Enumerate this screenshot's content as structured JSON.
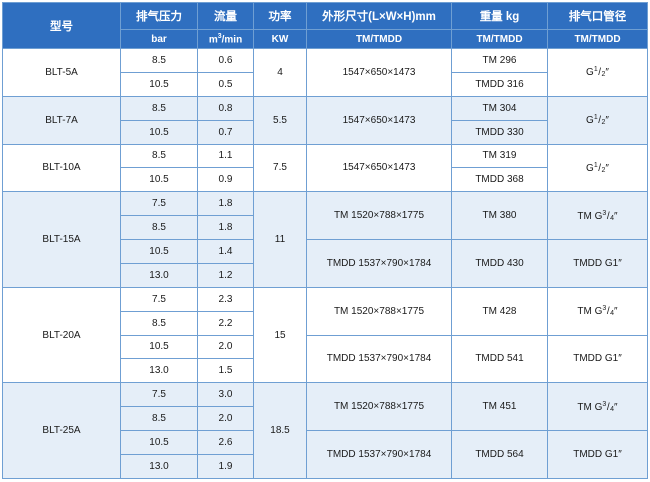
{
  "headers": {
    "model": "型号",
    "pressure": "排气压力",
    "flow": "流量",
    "power": "功率",
    "dims": "外形尺寸(L×W×H)mm",
    "weight": "重量 kg",
    "outlet": "排气口管径"
  },
  "units": {
    "pressure": "bar",
    "flow_pre": "m",
    "flow_sup": "3",
    "flow_post": "/min",
    "power": "KW",
    "dims": "TM/TMDD",
    "weight": "TM/TMDD",
    "outlet": "TM/TMDD"
  },
  "rows": [
    {
      "model": "BLT-5A",
      "sub": [
        {
          "p": "8.5",
          "f": "0.6"
        },
        {
          "p": "10.5",
          "f": "0.5"
        }
      ],
      "power": "4",
      "dims": "1547×650×1473",
      "weights": [
        "TM 296",
        "TMDD 316"
      ],
      "outlet": {
        "g": "G",
        "n": "1",
        "d": "2",
        "q": "″"
      }
    },
    {
      "model": "BLT-7A",
      "sub": [
        {
          "p": "8.5",
          "f": "0.8"
        },
        {
          "p": "10.5",
          "f": "0.7"
        }
      ],
      "power": "5.5",
      "dims": "1547×650×1473",
      "weights": [
        "TM 304",
        "TMDD 330"
      ],
      "outlet": {
        "g": "G",
        "n": "1",
        "d": "2",
        "q": "″"
      }
    },
    {
      "model": "BLT-10A",
      "sub": [
        {
          "p": "8.5",
          "f": "1.1"
        },
        {
          "p": "10.5",
          "f": "0.9"
        }
      ],
      "power": "7.5",
      "dims": "1547×650×1473",
      "weights": [
        "TM 319",
        "TMDD 368"
      ],
      "outlet": {
        "g": "G",
        "n": "1",
        "d": "2",
        "q": "″"
      }
    },
    {
      "model": "BLT-15A",
      "sub": [
        {
          "p": "7.5",
          "f": "1.8"
        },
        {
          "p": "8.5",
          "f": "1.8"
        },
        {
          "p": "10.5",
          "f": "1.4"
        },
        {
          "p": "13.0",
          "f": "1.2"
        }
      ],
      "power": "11",
      "dims_tm": "TM 1520×788×1775",
      "dims_tmdd": "TMDD 1537×790×1784",
      "weight_tm": "TM 380",
      "weight_tmdd": "TMDD 430",
      "outlet_tm": {
        "g": "TM G",
        "n": "3",
        "d": "4",
        "q": "″"
      },
      "outlet_tmdd": "TMDD G1″"
    },
    {
      "model": "BLT-20A",
      "sub": [
        {
          "p": "7.5",
          "f": "2.3"
        },
        {
          "p": "8.5",
          "f": "2.2"
        },
        {
          "p": "10.5",
          "f": "2.0"
        },
        {
          "p": "13.0",
          "f": "1.5"
        }
      ],
      "power": "15",
      "dims_tm": "TM 1520×788×1775",
      "dims_tmdd": "TMDD 1537×790×1784",
      "weight_tm": "TM 428",
      "weight_tmdd": "TMDD 541",
      "outlet_tm": {
        "g": "TM G",
        "n": "3",
        "d": "4",
        "q": "″"
      },
      "outlet_tmdd": "TMDD G1″"
    },
    {
      "model": "BLT-25A",
      "sub": [
        {
          "p": "7.5",
          "f": "3.0"
        },
        {
          "p": "8.5",
          "f": "2.0"
        },
        {
          "p": "10.5",
          "f": "2.6"
        },
        {
          "p": "13.0",
          "f": "1.9"
        }
      ],
      "power": "18.5",
      "dims_tm": "TM 1520×788×1775",
      "dims_tmdd": "TMDD 1537×790×1784",
      "weight_tm": "TM 451",
      "weight_tmdd": "TMDD 564",
      "outlet_tm": {
        "g": "TM G",
        "n": "3",
        "d": "4",
        "q": "″"
      },
      "outlet_tmdd": "TMDD G1″"
    }
  ]
}
